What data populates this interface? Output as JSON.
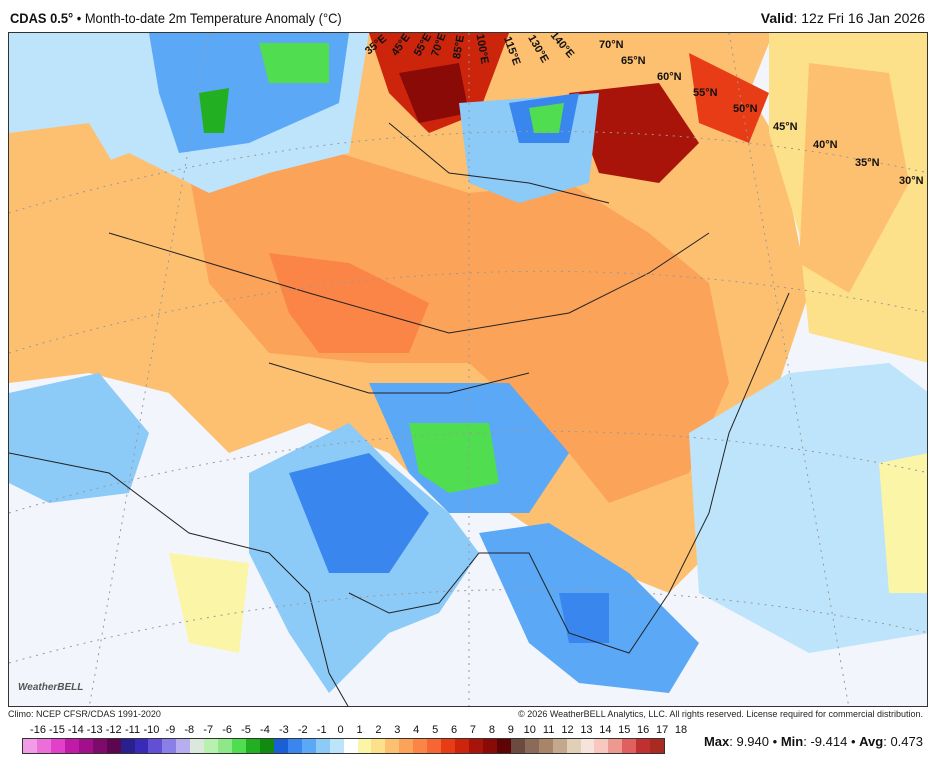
{
  "header": {
    "model": "CDAS 0.5",
    "model_deg": "°",
    "separator": "•",
    "title": "Month-to-date 2m Temperature Anomaly (°C)",
    "valid_label": "Valid",
    "valid_value": ": 12z Fri 16 Jan 2026"
  },
  "map": {
    "lat_labels": [
      "70°N",
      "65°N",
      "60°N",
      "55°N",
      "50°N",
      "45°N",
      "40°N",
      "35°N",
      "30°N"
    ],
    "lon_labels": [
      "35°E",
      "45°E",
      "55°E",
      "70°E",
      "85°E",
      "100°E",
      "115°E",
      "130°E",
      "140°E"
    ],
    "logo": "WeatherBELL"
  },
  "footer": {
    "climo": "Climo: NCEP CFSR/CDAS 1991-2020",
    "copyright": "© 2026 WeatherBELL Analytics, LLC. All rights reserved. License required for commercial distribution."
  },
  "colorbar": {
    "ticks": [
      "-16",
      "-15",
      "-14",
      "-13",
      "-12",
      "-11",
      "-10",
      "-9",
      "-8",
      "-7",
      "-6",
      "-5",
      "-4",
      "-3",
      "-2",
      "-1",
      "0",
      "1",
      "2",
      "3",
      "4",
      "5",
      "6",
      "7",
      "8",
      "9",
      "10",
      "11",
      "12",
      "13",
      "14",
      "15",
      "16",
      "17",
      "18"
    ],
    "colors": [
      "#f29be6",
      "#ec6fd9",
      "#e23fcb",
      "#c21aa8",
      "#a10f8a",
      "#7e0a6c",
      "#5c064f",
      "#2a1f8f",
      "#3a2ab8",
      "#6150d6",
      "#8a7fe6",
      "#b7aef0",
      "#dde8dd",
      "#b8f0b0",
      "#8ee88a",
      "#50de50",
      "#22b022",
      "#128a12",
      "#1a5fd6",
      "#3a86ef",
      "#5aa8f6",
      "#8ccaf8",
      "#bde4fb",
      "#ffffff",
      "#fbf5a8",
      "#fde08a",
      "#fdc070",
      "#fca35a",
      "#fb8546",
      "#f66534",
      "#e83c16",
      "#cc250c",
      "#a8140a",
      "#8a0a08",
      "#5e0404",
      "#6b4a40",
      "#8b6a5a",
      "#a88568",
      "#c4a88e",
      "#e0d0b8",
      "#f6e4dc",
      "#f8c8c0",
      "#ec9a90",
      "#e06060",
      "#c03030",
      "#a82a20"
    ]
  },
  "stats": {
    "max_label": "Max",
    "max": "9.940",
    "min_label": "Min",
    "min": "-9.414",
    "avg_label": "Avg",
    "avg": "0.473",
    "sep": "•"
  }
}
